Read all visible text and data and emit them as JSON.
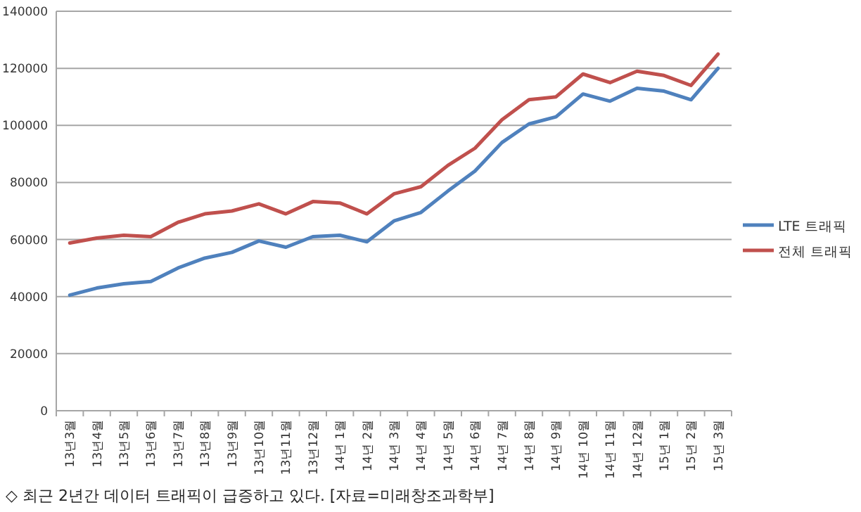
{
  "chart_data": {
    "type": "line",
    "categories": [
      "13년3월",
      "13년4월",
      "13년5월",
      "13년6월",
      "13년7월",
      "13년8월",
      "13년9월",
      "13년10월",
      "13년11월",
      "13년12월",
      "14년 1월",
      "14년 2월",
      "14년 3월",
      "14년 4월",
      "14년 5월",
      "14년 6월",
      "14년 7월",
      "14년 8월",
      "14년 9월",
      "14년 10월",
      "14년 11월",
      "14년 12월",
      "15년 1월",
      "15년 2월",
      "15년 3월"
    ],
    "series": [
      {
        "name": "LTE 트래픽",
        "color": "#4f81bd",
        "values": [
          40500,
          43000,
          44500,
          45300,
          50000,
          53500,
          55500,
          59500,
          57300,
          61000,
          61500,
          59200,
          66500,
          69500,
          77000,
          84000,
          94000,
          100500,
          103000,
          111000,
          108500,
          113000,
          112000,
          109000,
          120000
        ]
      },
      {
        "name": "전체 트래픽",
        "color": "#c0504d",
        "values": [
          58800,
          60500,
          61500,
          61000,
          66000,
          69000,
          70000,
          72500,
          69000,
          73300,
          72800,
          69000,
          76000,
          78500,
          86000,
          92000,
          102000,
          109000,
          110000,
          118000,
          115000,
          119000,
          117500,
          114000,
          125000
        ]
      }
    ],
    "ylim": [
      0,
      140000
    ],
    "yticks": [
      0,
      20000,
      40000,
      60000,
      80000,
      100000,
      120000,
      140000
    ],
    "grid": "y",
    "legend": "right",
    "annotations": [
      "◇ 최근 2년간 데이터 트래픽이 급증하고 있다. [자료=미래창조과학부]"
    ]
  }
}
